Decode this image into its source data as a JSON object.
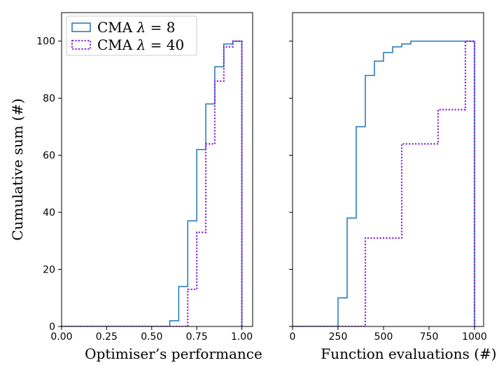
{
  "chart_data": [
    {
      "type": "line",
      "step": "cumulative histogram",
      "xlabel": "Optimiser’s performance",
      "ylabel": "Cumulative sum (#)",
      "xlim": [
        0,
        1.06
      ],
      "ylim": [
        0,
        110
      ],
      "xticks": [
        0,
        0.25,
        0.5,
        0.75,
        1.0
      ],
      "xtick_labels": [
        "0.00",
        "0.25",
        "0.50",
        "0.75",
        "1.00"
      ],
      "yticks": [
        0,
        20,
        40,
        60,
        80,
        100
      ],
      "ytick_labels": [
        "0",
        "20",
        "40",
        "60",
        "80",
        "100"
      ],
      "legend": {
        "placement": "upper-left",
        "entries": [
          {
            "prefix": "CMA ",
            "italic": "λ",
            "suffix": " = 8"
          },
          {
            "prefix": "CMA ",
            "italic": "λ",
            "suffix": " = 40"
          }
        ]
      },
      "series": [
        {
          "color": "#1f77b4",
          "style": "solid",
          "x": [
            0,
            0.6,
            0.65,
            0.7,
            0.75,
            0.8,
            0.85,
            0.9,
            0.95,
            1.0,
            1.0
          ],
          "y": [
            0,
            2,
            14,
            37,
            62,
            78,
            91,
            99,
            100,
            100,
            0
          ]
        },
        {
          "color": "#8a2be2",
          "style": "dotted",
          "x": [
            0,
            0.7,
            0.75,
            0.8,
            0.85,
            0.9,
            0.95,
            1.0,
            1.0
          ],
          "y": [
            0,
            13,
            33,
            64,
            86,
            98,
            100,
            100,
            0
          ]
        }
      ]
    },
    {
      "type": "line",
      "step": "cumulative histogram",
      "xlabel": "Function evaluations (#)",
      "ylabel": "",
      "xlim": [
        0,
        1050
      ],
      "ylim": [
        0,
        110
      ],
      "xticks": [
        0,
        250,
        500,
        750,
        1000
      ],
      "xtick_labels": [
        "0",
        "250",
        "500",
        "750",
        "1000"
      ],
      "yticks": [
        0,
        20,
        40,
        60,
        80,
        100
      ],
      "ytick_labels": [],
      "series": [
        {
          "color": "#1f77b4",
          "style": "solid",
          "x": [
            0,
            250,
            300,
            350,
            400,
            450,
            500,
            550,
            600,
            650,
            1000,
            1000
          ],
          "y": [
            0,
            10,
            38,
            70,
            88,
            93,
            96,
            98,
            99,
            100,
            100,
            0
          ]
        },
        {
          "color": "#8a2be2",
          "style": "dotted",
          "x": [
            0,
            400,
            600,
            800,
            950,
            1000,
            1000
          ],
          "y": [
            0,
            31,
            64,
            76,
            100,
            100,
            0
          ]
        }
      ]
    }
  ]
}
